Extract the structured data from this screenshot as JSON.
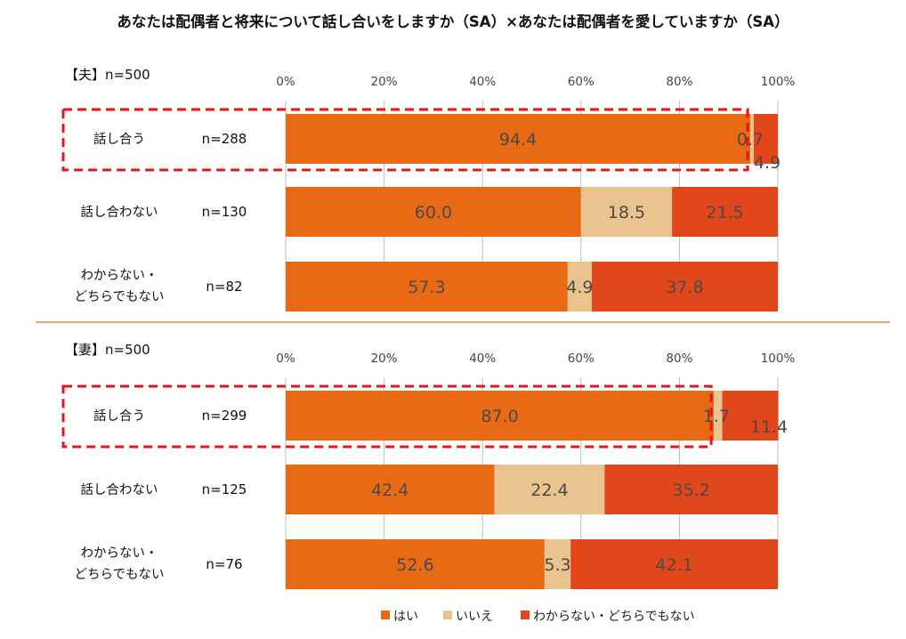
{
  "title": "あなたは配偶者と将来について話し合いをしますか（SA）×あなたは配偶者を愛していますか（SA）",
  "colors": {
    "yes": "#E96A14",
    "no": "#EAC48E",
    "unknown": "#E2461B",
    "highlight": "#E8131B",
    "divider": "#E98A3A",
    "grid": "#BFBFBF"
  },
  "legend": [
    "はい",
    "いいえ",
    "わからない・どちらでもない"
  ],
  "chart_data": [
    {
      "type": "bar",
      "orientation": "horizontal",
      "stacked": true,
      "panel_label": "【夫】n=500",
      "ticks": [
        "0%",
        "20%",
        "40%",
        "60%",
        "80%",
        "100%"
      ],
      "xlim": [
        0,
        100
      ],
      "categories": [
        {
          "lines": [
            "話し合う"
          ],
          "n": "n=288",
          "values": [
            94.4,
            0.7,
            4.9
          ],
          "labels": [
            "94.4",
            "0.7",
            "4.9"
          ],
          "highlight": true
        },
        {
          "lines": [
            "話し合わない"
          ],
          "n": "n=130",
          "values": [
            60.0,
            18.5,
            21.5
          ],
          "labels": [
            "60.0",
            "18.5",
            "21.5"
          ],
          "highlight": false
        },
        {
          "lines": [
            "わからない・",
            "どちらでもない"
          ],
          "n": "n=82",
          "values": [
            57.3,
            4.9,
            37.8
          ],
          "labels": [
            "57.3",
            "4.9",
            "37.8"
          ],
          "highlight": false
        }
      ],
      "series": [
        {
          "name": "はい"
        },
        {
          "name": "いいえ"
        },
        {
          "name": "わからない・どちらでもない"
        }
      ]
    },
    {
      "type": "bar",
      "orientation": "horizontal",
      "stacked": true,
      "panel_label": "【妻】n=500",
      "ticks": [
        "0%",
        "20%",
        "40%",
        "60%",
        "80%",
        "100%"
      ],
      "xlim": [
        0,
        100
      ],
      "categories": [
        {
          "lines": [
            "話し合う"
          ],
          "n": "n=299",
          "values": [
            87.0,
            1.7,
            11.4
          ],
          "labels": [
            "87.0",
            "1.7",
            "11.4"
          ],
          "highlight": true
        },
        {
          "lines": [
            "話し合わない"
          ],
          "n": "n=125",
          "values": [
            42.4,
            22.4,
            35.2
          ],
          "labels": [
            "42.4",
            "22.4",
            "35.2"
          ],
          "highlight": false
        },
        {
          "lines": [
            "わからない・",
            "どちらでもない"
          ],
          "n": "n=76",
          "values": [
            52.6,
            5.3,
            42.1
          ],
          "labels": [
            "52.6",
            "5.3",
            "42.1"
          ],
          "highlight": false
        }
      ],
      "series": [
        {
          "name": "はい"
        },
        {
          "name": "いいえ"
        },
        {
          "name": "わからない・どちらでもない"
        }
      ]
    }
  ]
}
